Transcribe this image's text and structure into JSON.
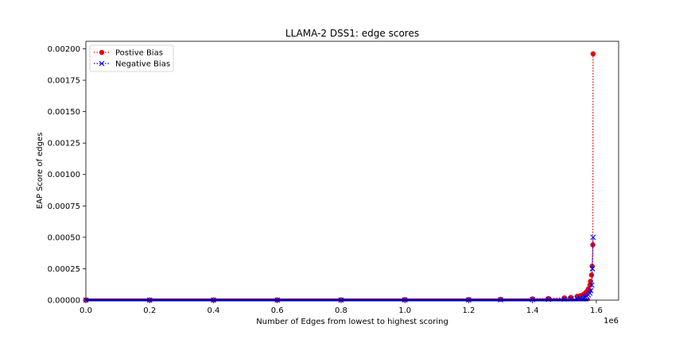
{
  "chart_data": {
    "type": "line",
    "title": "LLAMA-2 DSS1: edge scores",
    "xlabel": "Number of Edges from lowest to highest scoring",
    "ylabel": "EAP Score of edges",
    "x_offset_label": "1e6",
    "xlim": [
      0,
      1.67
    ],
    "ylim": [
      0,
      0.00206
    ],
    "x_ticks": [
      0.0,
      0.2,
      0.4,
      0.6,
      0.8,
      1.0,
      1.2,
      1.4,
      1.6
    ],
    "x_tick_labels": [
      "0.0",
      "0.2",
      "0.4",
      "0.6",
      "0.8",
      "1.0",
      "1.2",
      "1.4",
      "1.6"
    ],
    "y_ticks": [
      0,
      0.00025,
      0.0005,
      0.00075,
      0.001,
      0.00125,
      0.0015,
      0.00175,
      0.002
    ],
    "y_tick_labels": [
      "0.00000",
      "0.00025",
      "0.00050",
      "0.00075",
      "0.00100",
      "0.00125",
      "0.00150",
      "0.00175",
      "0.00200"
    ],
    "legend_position": "top-left",
    "series": [
      {
        "name": "Postive Bias",
        "color": "#e8000b",
        "marker": "circle",
        "linestyle": "dotted",
        "x": [
          0.0,
          0.2,
          0.4,
          0.6,
          0.8,
          1.0,
          1.2,
          1.3,
          1.4,
          1.45,
          1.5,
          1.52,
          1.54,
          1.55,
          1.56,
          1.565,
          1.57,
          1.575,
          1.58,
          1.582,
          1.585,
          1.587,
          1.589,
          1.59
        ],
        "y": [
          1e-06,
          1e-06,
          2e-06,
          2e-06,
          3e-06,
          4e-06,
          5e-06,
          7e-06,
          1e-05,
          1.3e-05,
          1.8e-05,
          2.2e-05,
          3e-05,
          3.6e-05,
          4.6e-05,
          5.5e-05,
          6.8e-05,
          8.8e-05,
          0.00012,
          0.00015,
          0.0002,
          0.00027,
          0.00044,
          0.00196
        ]
      },
      {
        "name": "Negative Bias",
        "color": "#0000ff",
        "marker": "x",
        "linestyle": "dotted",
        "x": [
          0.0,
          0.2,
          0.4,
          0.6,
          0.8,
          1.0,
          1.2,
          1.3,
          1.4,
          1.45,
          1.5,
          1.52,
          1.54,
          1.55,
          1.56,
          1.565,
          1.57,
          1.575,
          1.58,
          1.583,
          1.586,
          1.588,
          1.59
        ],
        "y": [
          5e-07,
          5e-07,
          1e-06,
          1e-06,
          1e-06,
          2e-06,
          2e-06,
          3e-06,
          4e-06,
          6e-06,
          8e-06,
          1e-05,
          1.3e-05,
          1.6e-05,
          2e-05,
          2.5e-05,
          3.2e-05,
          4.2e-05,
          5.5e-05,
          7.5e-05,
          0.00012,
          0.00025,
          0.0005
        ]
      }
    ]
  }
}
